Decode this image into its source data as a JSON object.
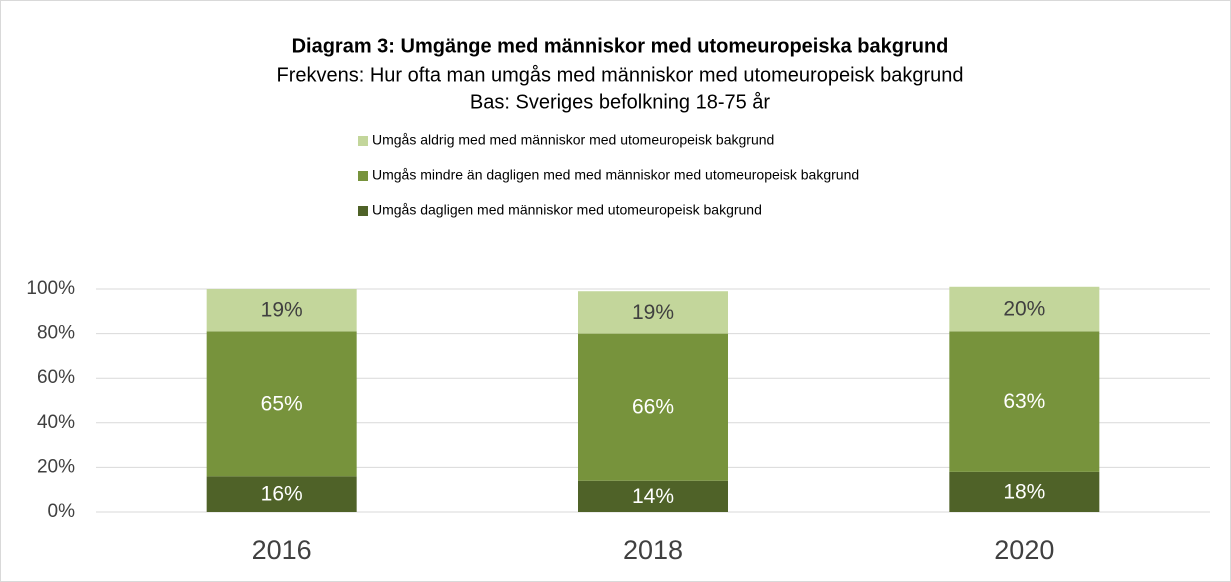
{
  "chart_data": {
    "type": "stacked_bar",
    "title": "Diagram 3: Umgänge med människor med utomeuropeiska bakgrund",
    "subtitle": "Frekvens: Hur ofta man umgås med människor med utomeuropeisk bakgrund",
    "subtitle2": "Bas: Sveriges befolkning 18-75 år",
    "categories": [
      "2016",
      "2018",
      "2020"
    ],
    "series": [
      {
        "name": "Umgås dagligen med människor med utomeuropeisk bakgrund",
        "color": "#4f6228",
        "values": [
          16,
          14,
          18
        ],
        "value_labels": [
          "16%",
          "14%",
          "18%"
        ]
      },
      {
        "name": "Umgås mindre än dagligen med med människor med utomeuropeisk bakgrund",
        "color": "#77933c",
        "values": [
          65,
          66,
          63
        ],
        "value_labels": [
          "65%",
          "66%",
          "63%"
        ]
      },
      {
        "name": "Umgås aldrig med med människor med utomeuropeisk bakgrund",
        "color": "#c3d69b",
        "values": [
          19,
          19,
          20
        ],
        "value_labels": [
          "19%",
          "19%",
          "20%"
        ]
      }
    ],
    "ylim": [
      0,
      100
    ],
    "yticks": [
      {
        "value": 0,
        "label": "0%"
      },
      {
        "value": 20,
        "label": "20%"
      },
      {
        "value": 40,
        "label": "40%"
      },
      {
        "value": 60,
        "label": "60%"
      },
      {
        "value": 80,
        "label": "80%"
      },
      {
        "value": 100,
        "label": "100%"
      }
    ],
    "grid": true,
    "legend": "top"
  }
}
